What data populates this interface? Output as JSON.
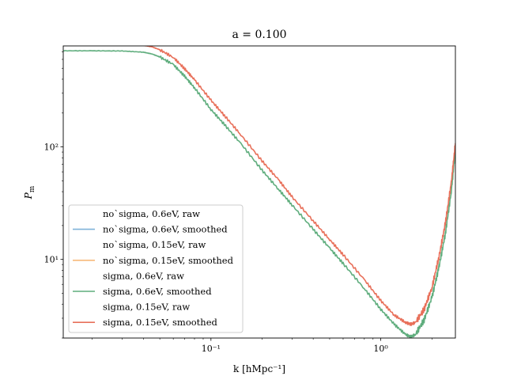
{
  "chart_data": {
    "type": "line",
    "title": "a = 0.100",
    "xlabel": "k [hMpc⁻¹]",
    "ylabel": "P_m",
    "xscale": "log",
    "yscale": "log",
    "xlim": [
      0.0135,
      2.75
    ],
    "ylim": [
      2.0,
      790
    ],
    "x_ticks": [
      {
        "value": 0.1,
        "label": "10⁻¹"
      },
      {
        "value": 1,
        "label": "10⁰"
      }
    ],
    "y_ticks": [
      {
        "value": 10,
        "label": "10¹"
      },
      {
        "value": 100,
        "label": "10²"
      }
    ],
    "grid": false,
    "legend_position": "lower-left",
    "series": [
      {
        "name": "no`sigma, 0.6eV, raw",
        "color": "",
        "visible": false,
        "x": [],
        "y": []
      },
      {
        "name": "no`sigma, 0.6eV, smoothed",
        "color": "#7fb2d9",
        "visible": false,
        "x": [],
        "y": []
      },
      {
        "name": "no`sigma, 0.15eV, raw",
        "color": "",
        "visible": false,
        "x": [],
        "y": []
      },
      {
        "name": "no`sigma, 0.15eV, smoothed",
        "color": "#f7b97a",
        "visible": false,
        "x": [],
        "y": []
      },
      {
        "name": "sigma, 0.6eV, raw",
        "color": "",
        "visible": false,
        "x": [],
        "y": []
      },
      {
        "name": "sigma, 0.6eV, smoothed",
        "color": "#5fad7d",
        "visible": true,
        "x": [
          0.0135,
          0.02,
          0.03,
          0.04,
          0.045,
          0.05,
          0.06,
          0.07,
          0.08,
          0.1,
          0.12,
          0.15,
          0.2,
          0.25,
          0.3,
          0.4,
          0.5,
          0.6,
          0.8,
          1.0,
          1.2,
          1.4,
          1.5,
          1.6,
          1.8,
          2.0,
          2.2,
          2.4,
          2.6,
          2.75
        ],
        "y": [
          715,
          715,
          712,
          695,
          670,
          630,
          540,
          425,
          335,
          215,
          158,
          107,
          62,
          42,
          30.5,
          18.5,
          12.6,
          9.2,
          5.5,
          3.6,
          2.65,
          2.15,
          2.05,
          2.15,
          2.9,
          4.6,
          8.5,
          17,
          40,
          95
        ]
      },
      {
        "name": "sigma, 0.15eV, raw",
        "color": "",
        "visible": false,
        "x": [],
        "y": []
      },
      {
        "name": "sigma, 0.15eV, smoothed",
        "color": "#e8705a",
        "visible": true,
        "x": [
          0.0135,
          0.02,
          0.03,
          0.035,
          0.04,
          0.045,
          0.05,
          0.06,
          0.07,
          0.08,
          0.1,
          0.12,
          0.15,
          0.2,
          0.25,
          0.3,
          0.4,
          0.5,
          0.6,
          0.8,
          1.0,
          1.2,
          1.4,
          1.5,
          1.6,
          1.8,
          2.0,
          2.2,
          2.4,
          2.6,
          2.75
        ],
        "y": [
          950,
          890,
          830,
          815,
          800,
          775,
          730,
          625,
          495,
          395,
          260,
          190,
          128,
          75,
          51,
          36,
          22,
          15,
          11,
          6.6,
          4.3,
          3.2,
          2.75,
          2.65,
          2.75,
          3.6,
          5.6,
          10.5,
          21,
          48,
          108
        ]
      }
    ]
  }
}
